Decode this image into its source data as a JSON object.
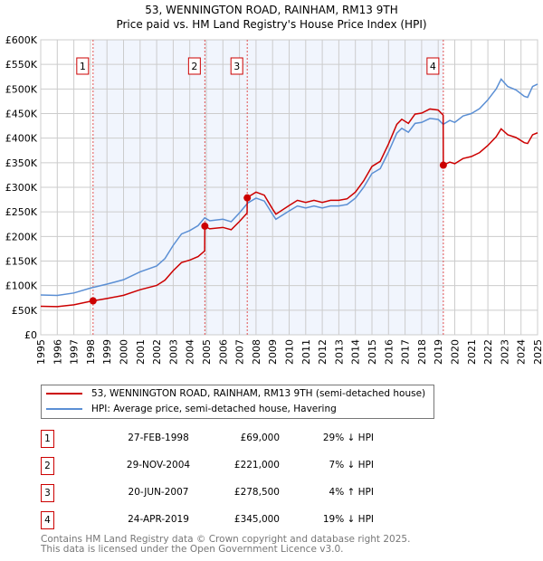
{
  "chart_data": {
    "type": "line",
    "title": "53, WENNINGTON ROAD, RAINHAM, RM13 9TH",
    "subtitle": "Price paid vs. HM Land Registry's House Price Index (HPI)",
    "xlim": [
      1995,
      2025
    ],
    "ylim": [
      0,
      600000
    ],
    "yticks": [
      0,
      50000,
      100000,
      150000,
      200000,
      250000,
      300000,
      350000,
      400000,
      450000,
      500000,
      550000,
      600000
    ],
    "ytick_labels": [
      "£0",
      "£50K",
      "£100K",
      "£150K",
      "£200K",
      "£250K",
      "£300K",
      "£350K",
      "£400K",
      "£450K",
      "£500K",
      "£550K",
      "£600K"
    ],
    "xticks": [
      "1995",
      "1996",
      "1997",
      "1998",
      "1999",
      "2000",
      "2001",
      "2002",
      "2003",
      "2004",
      "2005",
      "2006",
      "2007",
      "2008",
      "2009",
      "2010",
      "2011",
      "2012",
      "2013",
      "2014",
      "2015",
      "2016",
      "2017",
      "2018",
      "2019",
      "2020",
      "2021",
      "2022",
      "2023",
      "2024",
      "2025"
    ],
    "grid": true,
    "series": [
      {
        "name": "53, WENNINGTON ROAD, RAINHAM, RM13 9TH (semi-detached house)",
        "color": "#cc0000",
        "derived_from_hpi_and_sales": true
      },
      {
        "name": "HPI: Average price, semi-detached house, Havering",
        "color": "#5b8fd4",
        "x": [
          1995,
          1996,
          1997,
          1998,
          1999,
          2000,
          2001,
          2002,
          2002.5,
          2003,
          2003.5,
          2004,
          2004.5,
          2004.9,
          2005.2,
          2006,
          2006.5,
          2007,
          2007.5,
          2008,
          2008.5,
          2009,
          2009.2,
          2010,
          2010.5,
          2011,
          2011.5,
          2012,
          2012.5,
          2013,
          2013.5,
          2014,
          2014.5,
          2015,
          2015.5,
          2016,
          2016.5,
          2016.8,
          2017.2,
          2017.6,
          2018,
          2018.5,
          2019,
          2019.3,
          2019.7,
          2020,
          2020.5,
          2021,
          2021.5,
          2022,
          2022.5,
          2022.8,
          2023.2,
          2023.7,
          2024.2,
          2024.4,
          2024.7,
          2025
        ],
        "y": [
          81000,
          80000,
          85000,
          95000,
          103000,
          112000,
          128000,
          140000,
          155000,
          182000,
          205000,
          212000,
          222000,
          238000,
          232000,
          235000,
          230000,
          248000,
          268000,
          278000,
          272000,
          245000,
          235000,
          252000,
          262000,
          258000,
          262000,
          258000,
          262000,
          262000,
          265000,
          278000,
          300000,
          328000,
          338000,
          372000,
          410000,
          420000,
          412000,
          430000,
          432000,
          440000,
          438000,
          428000,
          436000,
          432000,
          445000,
          450000,
          460000,
          478000,
          500000,
          520000,
          505000,
          498000,
          485000,
          483000,
          505000,
          510000
        ]
      }
    ],
    "sales": [
      {
        "n": "1",
        "x": 1998.16,
        "date": "27-FEB-1998",
        "price": 69000,
        "price_label": "£69,000",
        "hpi": "29% ↓ HPI"
      },
      {
        "n": "2",
        "x": 2004.91,
        "date": "29-NOV-2004",
        "price": 221000,
        "price_label": "£221,000",
        "hpi": "7% ↓ HPI"
      },
      {
        "n": "3",
        "x": 2007.47,
        "date": "20-JUN-2007",
        "price": 278500,
        "price_label": "£278,500",
        "hpi": "4% ↑ HPI"
      },
      {
        "n": "4",
        "x": 2019.31,
        "date": "24-APR-2019",
        "price": 345000,
        "price_label": "£345,000",
        "hpi": "19% ↓ HPI"
      }
    ]
  },
  "header": {
    "title": "53, WENNINGTON ROAD, RAINHAM, RM13 9TH",
    "subtitle": "Price paid vs. HM Land Registry's House Price Index (HPI)"
  },
  "legend": {
    "property": "53, WENNINGTON ROAD, RAINHAM, RM13 9TH (semi-detached house)",
    "hpi": "HPI: Average price, semi-detached house, Havering"
  },
  "footer": {
    "line1": "Contains HM Land Registry data © Crown copyright and database right 2025.",
    "line2": "This data is licensed under the Open Government Licence v3.0."
  }
}
